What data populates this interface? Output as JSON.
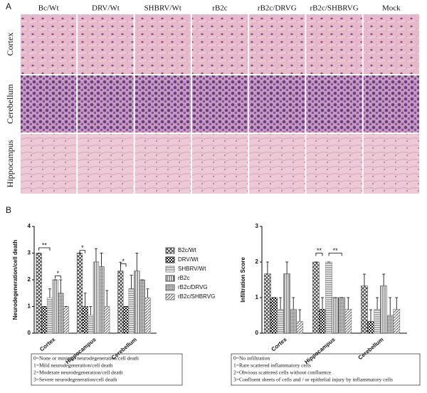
{
  "panel_a": {
    "label": "A",
    "columns": [
      "Bc/Wt",
      "DRV/Wt",
      "SHBRV/Wt",
      "rB2c",
      "rB2c/DRVG",
      "rB2c/SHBRVG",
      "Mock"
    ],
    "rows": [
      "Cortex",
      "Cerebellum",
      "Hippocampus"
    ]
  },
  "panel_b": {
    "label": "B"
  },
  "chart_data": [
    {
      "type": "bar",
      "ylabel": "Neurodegeneration/cell death",
      "categories": [
        "Cortex",
        "Hippocampus",
        "Cerebellum"
      ],
      "ylim": [
        0,
        4
      ],
      "yticks": [
        0,
        1,
        2,
        3,
        4
      ],
      "legend": "right",
      "series": [
        {
          "name": "B2c/Wt",
          "color": "#555555",
          "pattern": "diamond",
          "values": [
            3,
            3,
            2.33
          ],
          "errors": [
            0,
            0,
            0.33
          ]
        },
        {
          "name": "DRV/Wt",
          "color": "#222222",
          "pattern": "checker",
          "values": [
            1,
            1,
            1
          ],
          "errors": [
            0,
            0.5,
            0
          ]
        },
        {
          "name": "SHBRV/Wt",
          "color": "#888888",
          "pattern": "hline",
          "values": [
            1.33,
            0.67,
            1.67
          ],
          "errors": [
            0.33,
            0.33,
            0.5
          ]
        },
        {
          "name": "rB2c",
          "color": "#444444",
          "pattern": "vline",
          "values": [
            2,
            2.67,
            2.33
          ],
          "errors": [
            0,
            0.5,
            0.67
          ]
        },
        {
          "name": "rB2c/DRVG",
          "color": "#666666",
          "pattern": "dense",
          "values": [
            1.5,
            2.5,
            2
          ],
          "errors": [
            0.5,
            0.5,
            0
          ]
        },
        {
          "name": "rB2c/SHBRVG",
          "color": "#777777",
          "pattern": "diag",
          "values": [
            1,
            1,
            1.33
          ],
          "errors": [
            0,
            0.6,
            0.33
          ]
        }
      ],
      "annotations": [
        "**",
        "*",
        "*",
        "*"
      ],
      "notes": [
        "0=None or minimal neurodegeneration/cell death",
        "1=Mild neurodegeneration/cell death",
        "2=Moderate neurodegeneration/cell death",
        "3=Severe neurodegeneration/cell death"
      ]
    },
    {
      "type": "bar",
      "ylabel": "Infiltration Score",
      "categories": [
        "Cortex",
        "Hippocampus",
        "Cerebellum"
      ],
      "ylim": [
        0,
        3
      ],
      "yticks": [
        0,
        1,
        2,
        3
      ],
      "series": [
        {
          "color": "#555555",
          "pattern": "diamond",
          "values": [
            1.67,
            2,
            1.33
          ],
          "errors": [
            0.33,
            0,
            0.33
          ]
        },
        {
          "color": "#222222",
          "pattern": "checker",
          "values": [
            1,
            0.67,
            0.33
          ],
          "errors": [
            0,
            0.33,
            0.33
          ]
        },
        {
          "color": "#888888",
          "pattern": "hline",
          "values": [
            0.67,
            2,
            0.67
          ],
          "errors": [
            0.33,
            0,
            0.33
          ]
        },
        {
          "color": "#444444",
          "pattern": "vline",
          "values": [
            1.67,
            1,
            1.33
          ],
          "errors": [
            0.33,
            0,
            0.33
          ]
        },
        {
          "color": "#666666",
          "pattern": "dense",
          "values": [
            0.67,
            1,
            0.5
          ],
          "errors": [
            0.33,
            0,
            0.5
          ]
        },
        {
          "color": "#777777",
          "pattern": "diag",
          "values": [
            0.33,
            0.67,
            0.67
          ],
          "errors": [
            0.33,
            0.33,
            0.33
          ]
        }
      ],
      "annotations": [
        "**",
        "**"
      ],
      "notes": [
        "0=No infiltration",
        "1=Rare scattered inflammatory cells",
        "2=Obvious scattered cells without confluence",
        "3=Confluent sheets of cells and / or epithelial injury by inflammatory cells"
      ]
    }
  ]
}
